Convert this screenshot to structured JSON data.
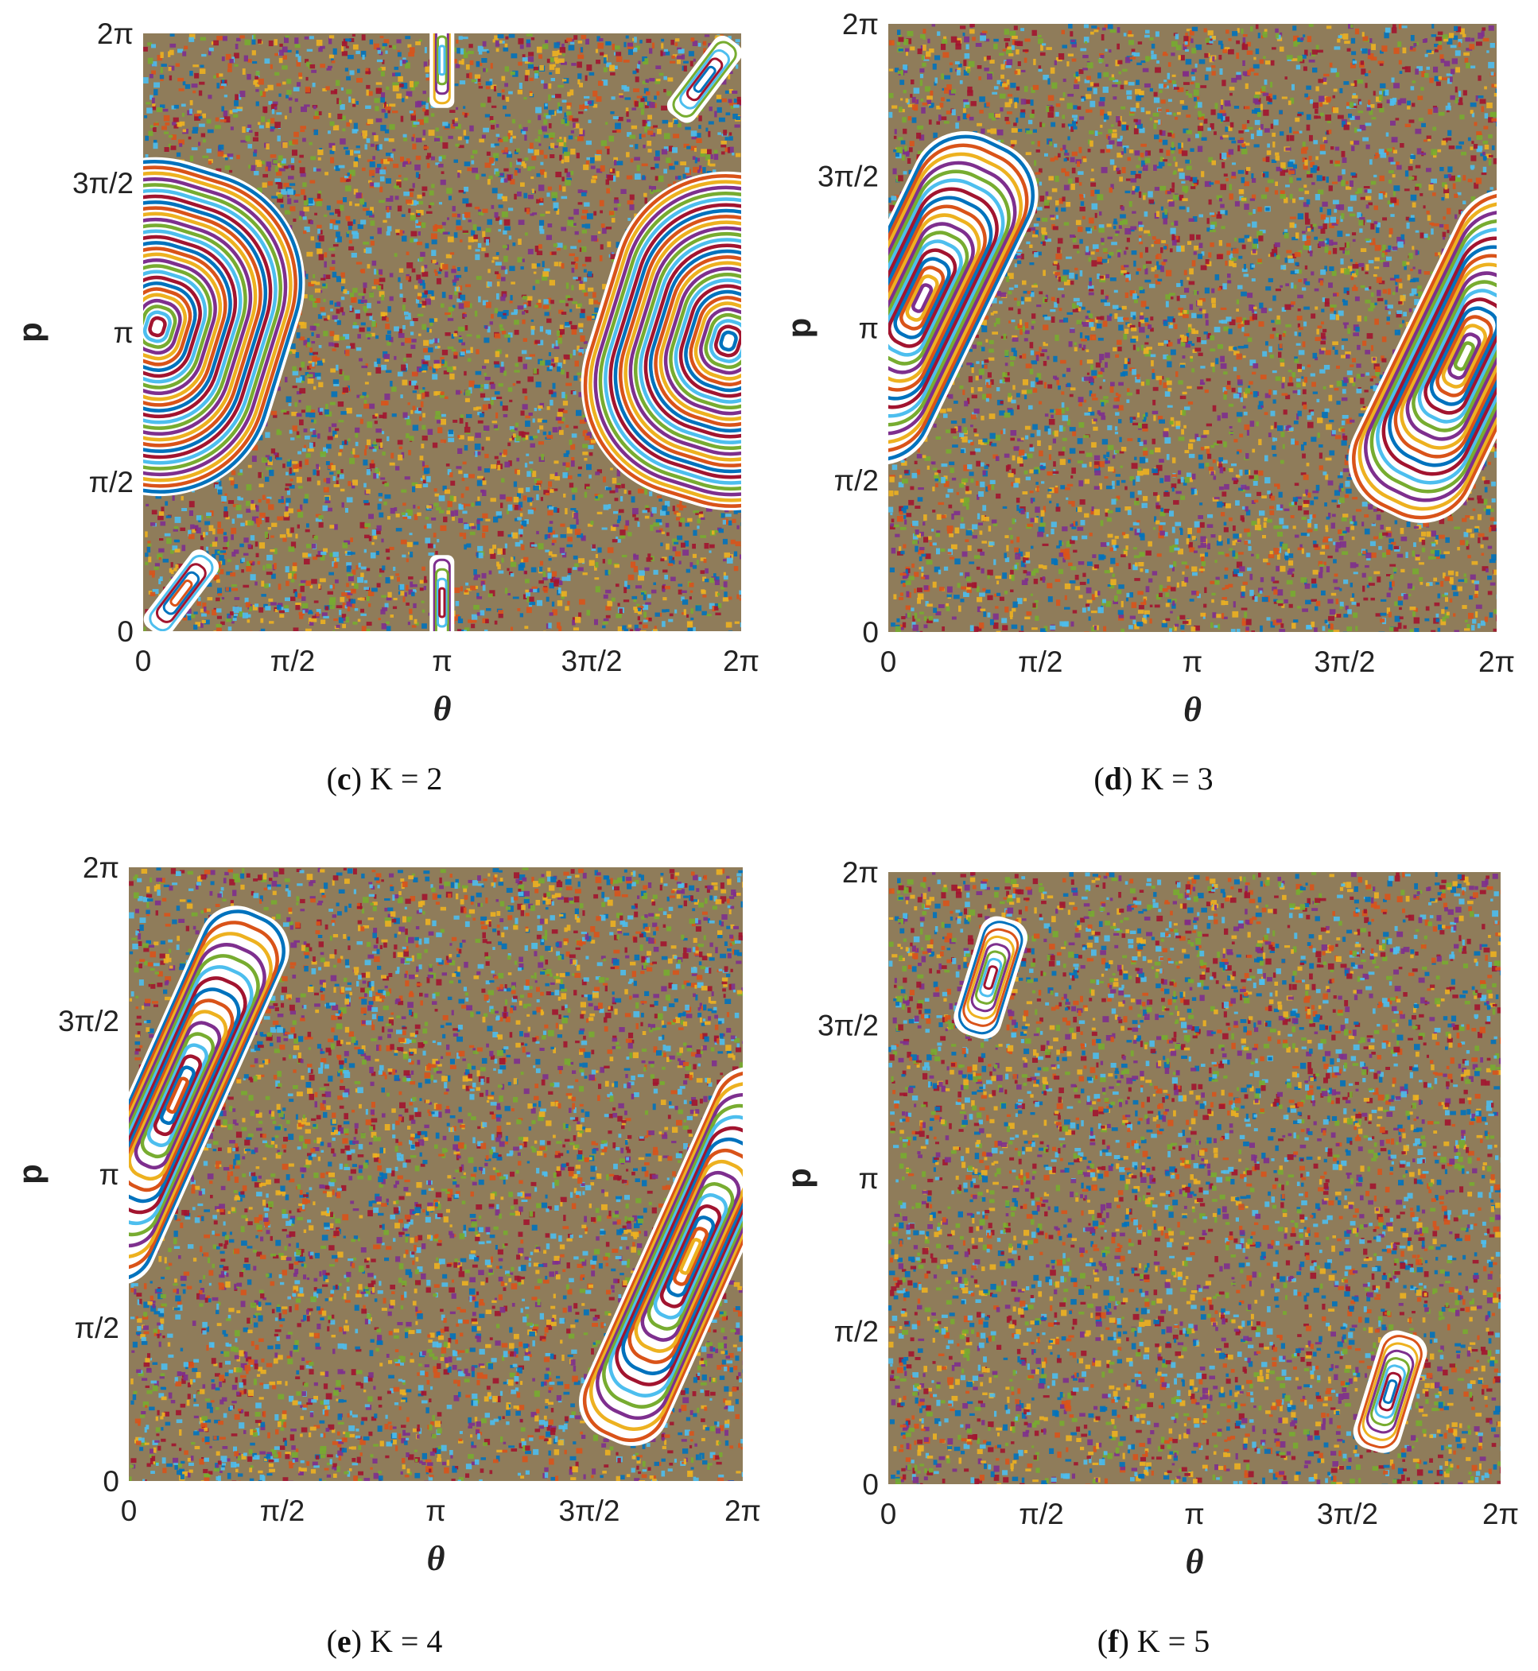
{
  "chart_data": [
    {
      "type": "scatter",
      "panel_id": "c",
      "caption_letter": "c",
      "caption_text": " K = 2",
      "K": 2,
      "xlabel": "θ",
      "ylabel": "p",
      "xlim": [
        0,
        6.2832
      ],
      "ylim": [
        0,
        6.2832
      ],
      "x_tick_labels": [
        "0",
        "π/2",
        "π",
        "3π/2",
        "2π"
      ],
      "y_tick_labels": [
        "0",
        "π/2",
        "π",
        "3π/2",
        "2π"
      ],
      "islands": [
        {
          "center": [
            0.15,
            3.2
          ],
          "half_width": 1.35,
          "half_height": 1.7,
          "tilt": 0.3,
          "rings": 28
        },
        {
          "center": [
            6.15,
            3.05
          ],
          "half_width": 1.35,
          "half_height": 1.7,
          "tilt": 0.3,
          "rings": 28
        },
        {
          "center": [
            3.14,
            6.0
          ],
          "half_width": 0.08,
          "half_height": 0.45,
          "tilt": 0,
          "rings": 4
        },
        {
          "center": [
            3.14,
            0.3
          ],
          "half_width": 0.08,
          "half_height": 0.45,
          "tilt": 0,
          "rings": 4
        },
        {
          "center": [
            5.9,
            5.8
          ],
          "half_width": 0.12,
          "half_height": 0.45,
          "tilt": 0.65,
          "rings": 4
        },
        {
          "center": [
            0.4,
            0.4
          ],
          "half_width": 0.12,
          "half_height": 0.45,
          "tilt": 0.65,
          "rings": 4
        }
      ]
    },
    {
      "type": "scatter",
      "panel_id": "d",
      "caption_letter": "d",
      "caption_text": " K = 3",
      "K": 3,
      "xlabel": "θ",
      "ylabel": "p",
      "xlim": [
        0,
        6.2832
      ],
      "ylim": [
        0,
        6.2832
      ],
      "x_tick_labels": [
        "0",
        "π/2",
        "π",
        "3π/2",
        "2π"
      ],
      "y_tick_labels": [
        "0",
        "π/2",
        "π",
        "3π/2",
        "2π"
      ],
      "islands": [
        {
          "center": [
            0.35,
            3.45
          ],
          "half_width": 0.62,
          "half_height": 1.75,
          "tilt": 0.45,
          "rings": 18
        },
        {
          "center": [
            5.95,
            2.85
          ],
          "half_width": 0.62,
          "half_height": 1.75,
          "tilt": 0.45,
          "rings": 18
        }
      ]
    },
    {
      "type": "scatter",
      "panel_id": "e",
      "caption_letter": "e",
      "caption_text": " K = 4",
      "K": 4,
      "xlabel": "θ",
      "ylabel": "p",
      "xlim": [
        0,
        6.2832
      ],
      "ylim": [
        0,
        6.2832
      ],
      "x_tick_labels": [
        "0",
        "π/2",
        "π",
        "3π/2",
        "2π"
      ],
      "y_tick_labels": [
        "0",
        "π/2",
        "π",
        "3π/2",
        "2π"
      ],
      "islands": [
        {
          "center": [
            0.5,
            3.95
          ],
          "half_width": 0.42,
          "half_height": 2.0,
          "tilt": 0.42,
          "rings": 16
        },
        {
          "center": [
            5.75,
            2.3
          ],
          "half_width": 0.42,
          "half_height": 2.0,
          "tilt": 0.42,
          "rings": 16
        }
      ]
    },
    {
      "type": "scatter",
      "panel_id": "f",
      "caption_letter": "f",
      "caption_text": " K = 5",
      "K": 5,
      "xlabel": "θ",
      "ylabel": "p",
      "xlim": [
        0,
        6.2832
      ],
      "ylim": [
        0,
        6.2832
      ],
      "x_tick_labels": [
        "0",
        "π/2",
        "π",
        "3π/2",
        "2π"
      ],
      "y_tick_labels": [
        "0",
        "π/2",
        "π",
        "3π/2",
        "2π"
      ],
      "islands": [
        {
          "center": [
            1.05,
            5.2
          ],
          "half_width": 0.2,
          "half_height": 0.58,
          "tilt": 0.3,
          "rings": 7
        },
        {
          "center": [
            5.15,
            0.95
          ],
          "half_width": 0.2,
          "half_height": 0.58,
          "tilt": 0.3,
          "rings": 7
        }
      ]
    }
  ],
  "colors": {
    "palette": [
      "#0072BD",
      "#D95319",
      "#EDB120",
      "#7E2F8E",
      "#77AC30",
      "#4DBEEE",
      "#A2142F"
    ],
    "axis_text": "#222222",
    "island_gap": "#ffffff"
  }
}
